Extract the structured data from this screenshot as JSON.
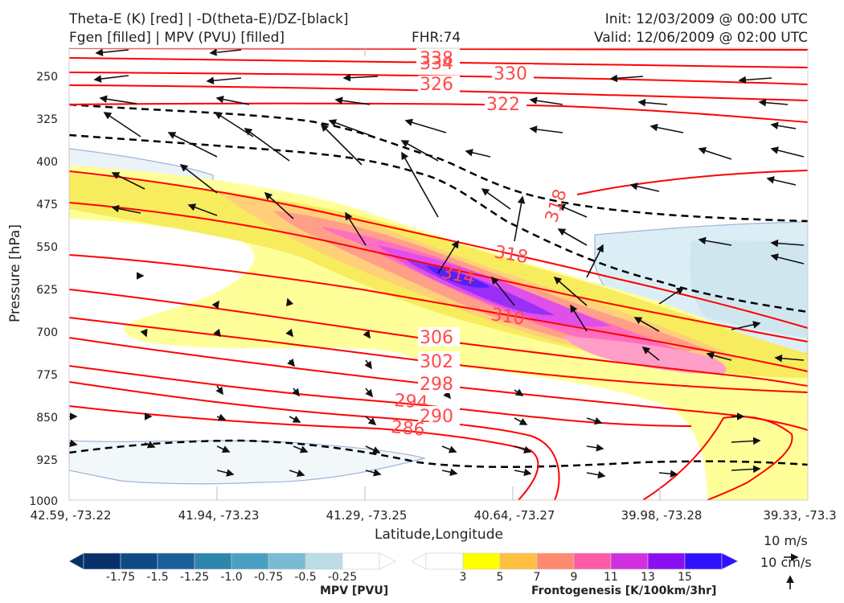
{
  "header": {
    "title_line1": "Theta-E (K) [red] | -D(theta-E)/DZ-[black]",
    "title_line2": "Fgen [filled] | MPV (PVU) [filled]",
    "fhr": "FHR:74",
    "init": "Init: 12/03/2009 @ 00:00 UTC",
    "valid": "Valid: 12/06/2009 @ 02:00 UTC"
  },
  "chart_data": {
    "type": "cross-section",
    "ylabel": "Pressure [hPa]",
    "xlabel": "Latitude,Longitude",
    "y_axis": {
      "scale": "pressure, inverted",
      "range": [
        1000,
        200
      ],
      "ticks": [
        "250",
        "325",
        "400",
        "475",
        "550",
        "625",
        "700",
        "775",
        "850",
        "925",
        "1000"
      ]
    },
    "x_axis": {
      "ticks": [
        "42.59, -73.22",
        "41.94, -73.23",
        "41.29, -73.25",
        "40.64, -73.27",
        "39.98, -73.28",
        "39.33, -73.3"
      ]
    },
    "theta_e_contour_labels": [
      "338",
      "334",
      "330",
      "326",
      "322",
      "318",
      "318",
      "314",
      "310",
      "306",
      "302",
      "298",
      "294",
      "290",
      "286"
    ],
    "theta_e_color": "#ff0000",
    "stability_contour_color": "#000000",
    "mpv_colorbar": {
      "label": "MPV [PVU]",
      "ticks": [
        "-1.75",
        "-1.5",
        "-1.25",
        "-1.0",
        "-0.75",
        "-0.5",
        "-0.25"
      ],
      "colors": [
        "#08306b",
        "#08306b",
        "#0d4b86",
        "#1a5f9a",
        "#2e86ad",
        "#4aa0c2",
        "#7bbad3",
        "#bcdde8",
        "#ffffff"
      ]
    },
    "fgen_colorbar": {
      "label": "Frontogenesis [K/100km/3hr]",
      "ticks": [
        "3",
        "5",
        "7",
        "9",
        "11",
        "13",
        "15"
      ],
      "colors": [
        "#ffffff",
        "#ffff00",
        "#ffc040",
        "#ff8a70",
        "#ff5aa8",
        "#d030e0",
        "#8a10f0",
        "#3010ff"
      ]
    },
    "wind_scale": {
      "horizontal": "10 m/s",
      "vertical": "10 cm/s"
    }
  }
}
